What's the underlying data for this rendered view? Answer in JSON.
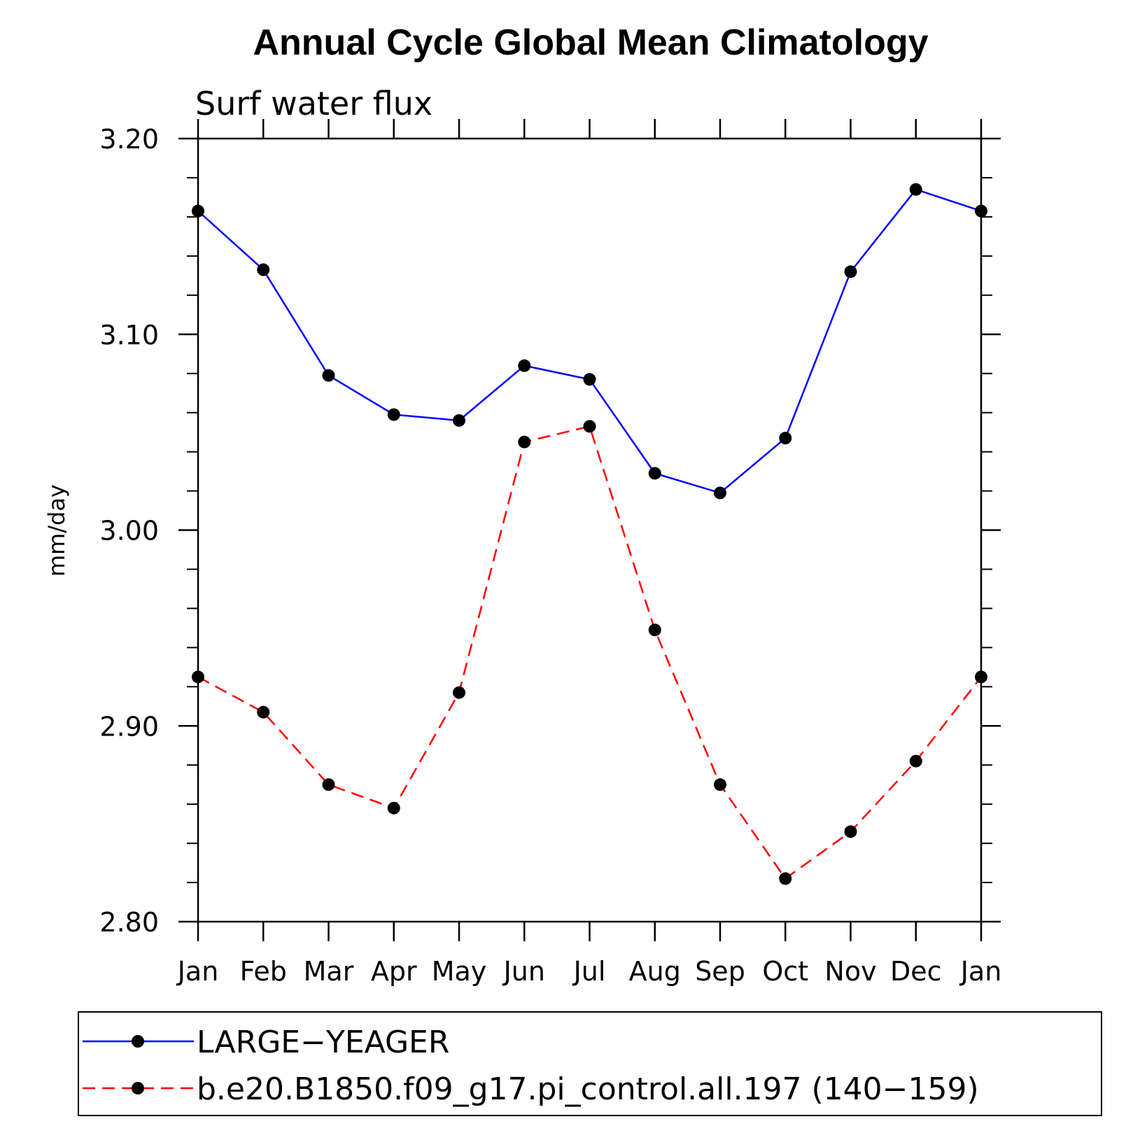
{
  "chart_data": {
    "type": "line",
    "title": "Annual Cycle Global Mean Climatology",
    "subtitle": "Surf water flux",
    "xlabel": "",
    "ylabel": "mm/day",
    "categories": [
      "Jan",
      "Feb",
      "Mar",
      "Apr",
      "May",
      "Jun",
      "Jul",
      "Aug",
      "Sep",
      "Oct",
      "Nov",
      "Dec",
      "Jan"
    ],
    "ylim": [
      2.8,
      3.2
    ],
    "yticks": [
      "2.80",
      "2.90",
      "3.00",
      "3.10",
      "3.20"
    ],
    "grid": false,
    "legend_position": "bottom",
    "series": [
      {
        "name": "LARGE−YEAGER",
        "color": "#0000ff",
        "style": "solid",
        "marker": "filled-circle",
        "values": [
          3.163,
          3.133,
          3.079,
          3.059,
          3.056,
          3.084,
          3.077,
          3.029,
          3.019,
          3.047,
          3.132,
          3.174,
          3.163
        ]
      },
      {
        "name": "b.e20.B1850.f09_g17.pi_control.all.197 (140−159)",
        "color": "#ff0000",
        "style": "dashed",
        "marker": "filled-circle",
        "values": [
          2.925,
          2.907,
          2.87,
          2.858,
          2.917,
          3.045,
          3.053,
          2.949,
          2.87,
          2.822,
          2.846,
          2.882,
          2.925
        ]
      }
    ]
  }
}
